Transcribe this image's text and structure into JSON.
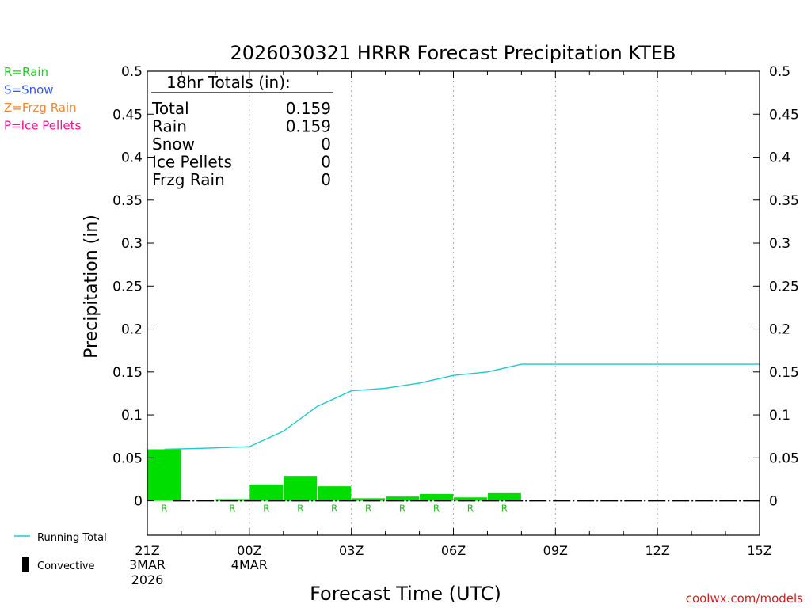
{
  "chart_data": {
    "type": "bar",
    "title": "2026030321 HRRR Forecast Precipitation KTEB",
    "xlabel": "Forecast Time (UTC)",
    "ylabel": "Precipitation (in)",
    "ylim": [
      -0.04,
      0.5
    ],
    "xlim_hours": [
      0,
      18
    ],
    "grid": "vertical dotted at labeled ticks",
    "y_ticks": [
      "0",
      "0.05",
      "0.1",
      "0.15",
      "0.2",
      "0.25",
      "0.3",
      "0.35",
      "0.4",
      "0.45",
      "0.5"
    ],
    "x_ticks": [
      {
        "hour": 0,
        "label": "21Z",
        "date": "3MAR",
        "year": "2026"
      },
      {
        "hour": 3,
        "label": "00Z",
        "date": "4MAR",
        "year": ""
      },
      {
        "hour": 6,
        "label": "03Z",
        "date": "",
        "year": ""
      },
      {
        "hour": 9,
        "label": "06Z",
        "date": "",
        "year": ""
      },
      {
        "hour": 12,
        "label": "09Z",
        "date": "",
        "year": ""
      },
      {
        "hour": 15,
        "label": "12Z",
        "date": "",
        "year": ""
      },
      {
        "hour": 18,
        "label": "15Z",
        "date": "",
        "year": ""
      }
    ],
    "series": [
      {
        "name": "Rain",
        "color": "#00dd00",
        "bars": [
          {
            "hour": 1,
            "value": 0.06,
            "ptype": "R"
          },
          {
            "hour": 2,
            "value": 0.0,
            "ptype": ""
          },
          {
            "hour": 3,
            "value": 0.002,
            "ptype": "R"
          },
          {
            "hour": 4,
            "value": 0.019,
            "ptype": "R"
          },
          {
            "hour": 5,
            "value": 0.029,
            "ptype": "R"
          },
          {
            "hour": 6,
            "value": 0.017,
            "ptype": "R"
          },
          {
            "hour": 7,
            "value": 0.003,
            "ptype": "R"
          },
          {
            "hour": 8,
            "value": 0.005,
            "ptype": "R"
          },
          {
            "hour": 9,
            "value": 0.008,
            "ptype": "R"
          },
          {
            "hour": 10,
            "value": 0.004,
            "ptype": "R"
          },
          {
            "hour": 11,
            "value": 0.009,
            "ptype": "R"
          },
          {
            "hour": 12,
            "value": 0.0,
            "ptype": ""
          },
          {
            "hour": 13,
            "value": 0.0,
            "ptype": ""
          },
          {
            "hour": 14,
            "value": 0.0,
            "ptype": ""
          },
          {
            "hour": 15,
            "value": 0.0,
            "ptype": ""
          },
          {
            "hour": 16,
            "value": 0.0,
            "ptype": ""
          },
          {
            "hour": 17,
            "value": 0.0,
            "ptype": ""
          },
          {
            "hour": 18,
            "value": 0.0,
            "ptype": ""
          }
        ]
      },
      {
        "name": "Running Total",
        "color": "#20c8c8",
        "points": [
          {
            "hour": 0.5,
            "value": 0.06
          },
          {
            "hour": 1.5,
            "value": 0.061
          },
          {
            "hour": 3,
            "value": 0.063
          },
          {
            "hour": 4,
            "value": 0.081
          },
          {
            "hour": 5,
            "value": 0.11
          },
          {
            "hour": 6,
            "value": 0.128
          },
          {
            "hour": 7,
            "value": 0.131
          },
          {
            "hour": 8,
            "value": 0.137
          },
          {
            "hour": 9,
            "value": 0.146
          },
          {
            "hour": 10,
            "value": 0.15
          },
          {
            "hour": 11,
            "value": 0.159
          },
          {
            "hour": 18,
            "value": 0.159
          }
        ]
      }
    ],
    "totals_box": {
      "header": "18hr Totals (in):",
      "rows": [
        {
          "label": "Total",
          "value": "0.159"
        },
        {
          "label": "Rain",
          "value": "0.159"
        },
        {
          "label": "Snow",
          "value": "0"
        },
        {
          "label": "Ice Pellets",
          "value": "0"
        },
        {
          "label": "Frzg Rain",
          "value": "0"
        }
      ]
    },
    "ptype_legend": [
      {
        "text": "R=Rain",
        "color": "#22cc22"
      },
      {
        "text": "S=Snow",
        "color": "#3355ee"
      },
      {
        "text": "Z=Frzg Rain",
        "color": "#ee8833"
      },
      {
        "text": "P=Ice Pellets",
        "color": "#ee1199"
      }
    ],
    "bottom_legend": [
      {
        "text": "Running Total",
        "kind": "line",
        "color": "#20c8c8"
      },
      {
        "text": "Convective",
        "kind": "bar",
        "color": "#000000"
      }
    ],
    "credit": "coolwx.com/models",
    "credit_color": "#cc2222"
  }
}
